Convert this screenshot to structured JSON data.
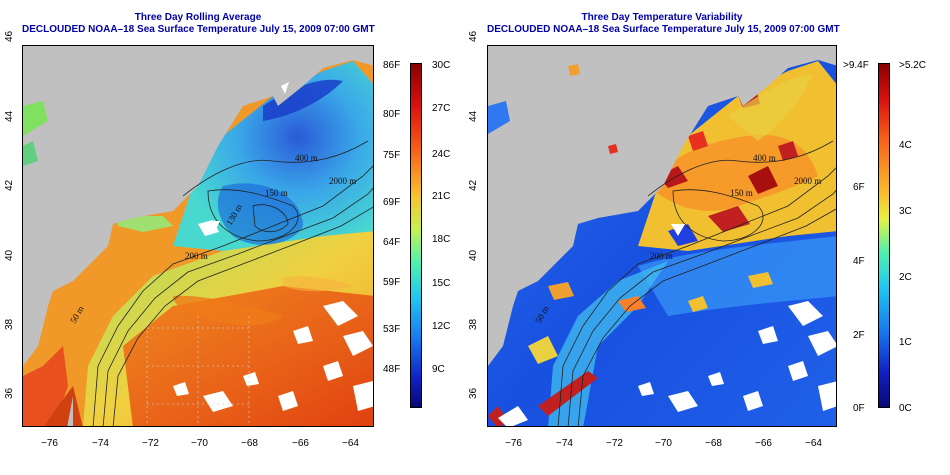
{
  "left_panel": {
    "title_line1": "Three Day Rolling Average",
    "title_line2": "DECLOUDED NOAA–18 Sea Surface Temperature July 15, 2009 07:00 GMT",
    "x_ticks": [
      "−76",
      "−74",
      "−72",
      "−70",
      "−68",
      "−66",
      "−64"
    ],
    "y_ticks": [
      "46",
      "44",
      "42",
      "40",
      "38",
      "36"
    ],
    "contour_labels": [
      "400 m",
      "150 m",
      "130 m",
      "2000 m",
      "200 m",
      "50 m"
    ],
    "colorbar_f_labels": [
      "86F",
      "80F",
      "75F",
      "69F",
      "64F",
      "59F",
      "53F",
      "48F"
    ],
    "colorbar_c_labels": [
      "30C",
      "27C",
      "24C",
      "21C",
      "18C",
      "15C",
      "12C",
      "9C"
    ]
  },
  "right_panel": {
    "title_line1": "Three Day Temperature Variability",
    "title_line2": "DECLOUDED NOAA–18 Sea Surface Temperature July 15, 2009 07:00 GMT",
    "x_ticks": [
      "−76",
      "−74",
      "−72",
      "−70",
      "−68",
      "−66",
      "−64"
    ],
    "y_ticks": [
      "46",
      "44",
      "42",
      "40",
      "38",
      "36"
    ],
    "contour_labels": [
      "400 m",
      "150 m",
      "2000 m",
      "200 m",
      "50 m"
    ],
    "colorbar_f_labels": [
      ">9.4F",
      "6F",
      "4F",
      "2F",
      "0F"
    ],
    "colorbar_c_labels": [
      ">5.2C",
      "4C",
      "3C",
      "2C",
      "1C",
      "0C"
    ]
  },
  "colors": {
    "title": "#0000a8",
    "land": "#c0c0c0",
    "cloud": "#ffffff"
  }
}
